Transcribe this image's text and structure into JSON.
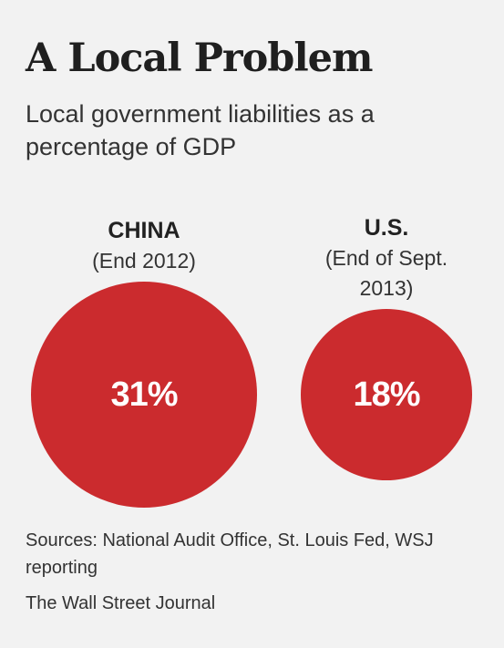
{
  "header": {
    "title": "A Local Problem",
    "subtitle": "Local government liabilities as a percentage of GDP"
  },
  "chart_data": {
    "type": "bubble",
    "title": "A Local Problem",
    "subtitle": "Local government liabilities as a percentage of GDP",
    "unit": "%",
    "series": [
      {
        "name": "CHINA",
        "period": "(End 2012)",
        "value": 31,
        "label": "31%"
      },
      {
        "name": "U.S.",
        "period": "(End of Sept. 2013)",
        "value": 18,
        "label": "18%"
      }
    ],
    "colors": {
      "circle": "#cb2b2e",
      "value_text": "#ffffff"
    }
  },
  "footer": {
    "sources": "Sources: National Audit Office, St. Louis Fed, WSJ reporting",
    "credit": "The Wall Street Journal"
  }
}
